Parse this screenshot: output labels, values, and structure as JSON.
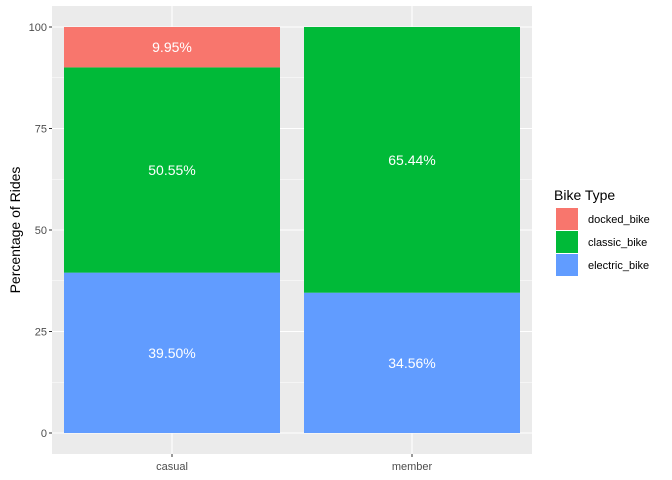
{
  "chart_data": {
    "type": "bar",
    "stacked": true,
    "categories": [
      "casual",
      "member"
    ],
    "series": [
      {
        "name": "electric_bike",
        "color": "#619CFF",
        "values": [
          39.5,
          34.56
        ],
        "labels": [
          "39.50%",
          "34.56%"
        ]
      },
      {
        "name": "classic_bike",
        "color": "#00BA38",
        "values": [
          50.55,
          65.44
        ],
        "labels": [
          "50.55%",
          "65.44%"
        ]
      },
      {
        "name": "docked_bike",
        "color": "#F8766D",
        "values": [
          9.95,
          0
        ],
        "labels": [
          "9.95%",
          ""
        ]
      }
    ],
    "legend_order": [
      "docked_bike",
      "classic_bike",
      "electric_bike"
    ],
    "xlabel": "",
    "ylabel": "Percentage of Rides",
    "ylim": [
      0,
      100
    ],
    "yticks": [
      0,
      25,
      50,
      75,
      100
    ],
    "legend": {
      "title": "Bike Type",
      "position": "right"
    },
    "grid": true,
    "panel_background": "#EBEBEB",
    "grid_color": "#FFFFFF"
  }
}
